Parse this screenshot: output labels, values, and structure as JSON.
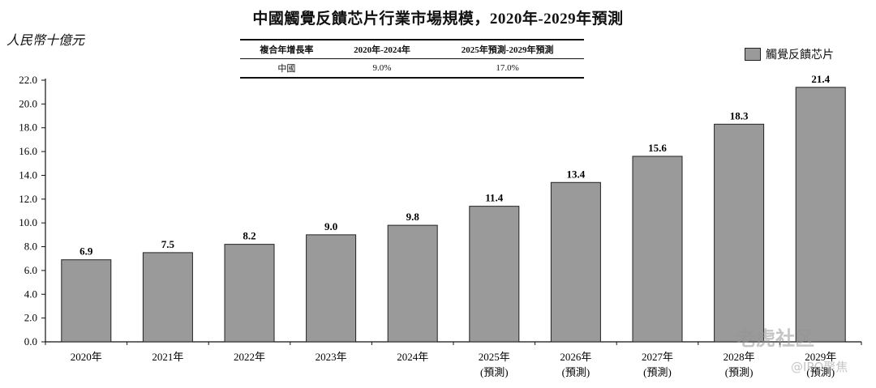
{
  "chart_data": {
    "type": "bar",
    "title": "中國觸覺反饋芯片行業市場規模，2020年-2029年預測",
    "ylabel": "人民幣十億元",
    "xlabel": "",
    "ylim": [
      0,
      22
    ],
    "yticks": [
      "0.0",
      "2.0",
      "4.0",
      "6.0",
      "8.0",
      "10.0",
      "12.0",
      "14.0",
      "16.0",
      "18.0",
      "20.0",
      "22.0"
    ],
    "categories": [
      "2020年",
      "2021年",
      "2022年",
      "2023年",
      "2024年",
      "2025年",
      "2026年",
      "2027年",
      "2028年",
      "2029年"
    ],
    "category_notes": [
      "",
      "",
      "",
      "",
      "",
      "(預測)",
      "(預測)",
      "(預測)",
      "(預測)",
      "(預測)"
    ],
    "series": [
      {
        "name": "觸覺反饋芯片",
        "values": [
          6.9,
          7.5,
          8.2,
          9.0,
          9.8,
          11.4,
          13.4,
          15.6,
          18.3,
          21.4
        ]
      }
    ],
    "data_labels": [
      "6.9",
      "7.5",
      "8.2",
      "9.0",
      "9.8",
      "11.4",
      "13.4",
      "15.6",
      "18.3",
      "21.4"
    ],
    "bar_color": "#9a9a9a",
    "legend": "top-right",
    "grid": false
  },
  "growth_table": {
    "headers": [
      "複合年增長率",
      "2020年-2024年",
      "2025年預測-2029年預測"
    ],
    "rows": [
      [
        "中國",
        "9.0%",
        "17.0%"
      ]
    ]
  },
  "watermark": {
    "main": "老虎社区",
    "sub": "@IPO聚焦"
  }
}
